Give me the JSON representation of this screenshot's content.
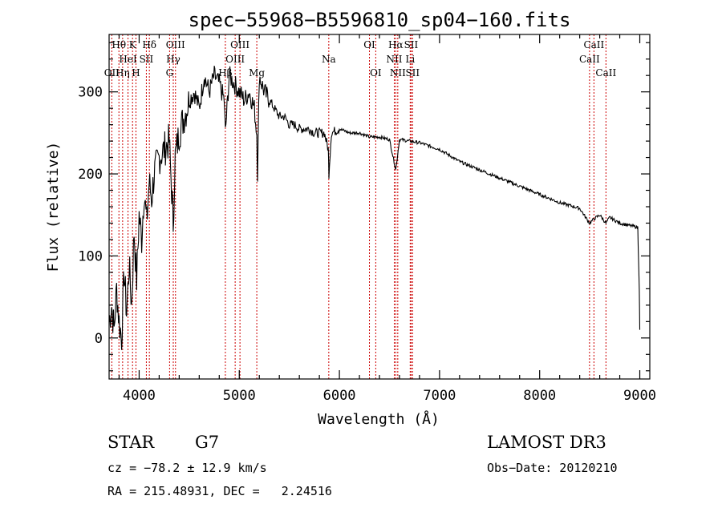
{
  "chart_data": {
    "type": "line",
    "title": "spec−55968−B5596810_sp04−160.fits",
    "xlabel": "Wavelength (Å)",
    "ylabel": "Flux (relative)",
    "xlim": [
      3700,
      9100
    ],
    "ylim": [
      -50,
      370
    ],
    "xticks": [
      4000,
      5000,
      6000,
      7000,
      8000,
      9000
    ],
    "xtick_labels": [
      "4000",
      "5000",
      "6000",
      "7000",
      "8000",
      "9000"
    ],
    "yticks": [
      0,
      100,
      200,
      300
    ],
    "ytick_labels": [
      "0",
      "100",
      "200",
      "300"
    ],
    "grid": false,
    "series": [
      {
        "name": "spectrum",
        "color": "#000000",
        "x": [
          3700,
          3725,
          3750,
          3775,
          3800,
          3825,
          3850,
          3875,
          3900,
          3925,
          3950,
          3975,
          4000,
          4025,
          4050,
          4075,
          4100,
          4125,
          4150,
          4175,
          4200,
          4250,
          4300,
          4325,
          4340,
          4360,
          4400,
          4450,
          4500,
          4550,
          4600,
          4650,
          4700,
          4750,
          4800,
          4850,
          4861,
          4900,
          4950,
          5000,
          5050,
          5100,
          5150,
          5175,
          5183,
          5200,
          5250,
          5300,
          5350,
          5400,
          5450,
          5500,
          5550,
          5600,
          5650,
          5700,
          5750,
          5800,
          5850,
          5889,
          5895,
          5920,
          6000,
          6100,
          6200,
          6300,
          6400,
          6500,
          6563,
          6600,
          6700,
          6800,
          7000,
          7200,
          7400,
          7600,
          7800,
          8000,
          8200,
          8400,
          8498,
          8542,
          8600,
          8662,
          8700,
          8800,
          8900,
          8980,
          8995,
          9000
        ],
        "values": [
          20,
          40,
          10,
          60,
          20,
          0,
          80,
          30,
          90,
          40,
          130,
          70,
          150,
          120,
          180,
          140,
          190,
          170,
          200,
          210,
          220,
          230,
          240,
          180,
          140,
          220,
          250,
          270,
          290,
          300,
          280,
          320,
          300,
          320,
          310,
          290,
          250,
          320,
          310,
          300,
          290,
          300,
          280,
          250,
          200,
          320,
          300,
          290,
          280,
          270,
          270,
          260,
          260,
          255,
          255,
          255,
          250,
          250,
          250,
          230,
          200,
          250,
          255,
          250,
          250,
          245,
          245,
          242,
          205,
          242,
          240,
          238,
          230,
          215,
          205,
          195,
          185,
          175,
          165,
          158,
          140,
          145,
          150,
          140,
          147,
          140,
          137,
          135,
          60,
          10
        ]
      }
    ],
    "spectral_lines": [
      {
        "wavelength": 3798,
        "label": "Hθ",
        "row": 0
      },
      {
        "wavelength": 3727,
        "label": "OII",
        "row": 2
      },
      {
        "wavelength": 3835,
        "label": "Hη",
        "row": 2
      },
      {
        "wavelength": 3889,
        "label": "HeI",
        "row": 1
      },
      {
        "wavelength": 3934,
        "label": "K",
        "row": 0
      },
      {
        "wavelength": 3968,
        "label": "H",
        "row": 2
      },
      {
        "wavelength": 4072,
        "label": "SII",
        "row": 1
      },
      {
        "wavelength": 4102,
        "label": "Hδ",
        "row": 0
      },
      {
        "wavelength": 4304,
        "label": "G",
        "row": 2
      },
      {
        "wavelength": 4341,
        "label": "Hγ",
        "row": 1
      },
      {
        "wavelength": 4363,
        "label": "OIII",
        "row": 0
      },
      {
        "wavelength": 4861,
        "label": "Hβ",
        "row": 2
      },
      {
        "wavelength": 4959,
        "label": "OIII",
        "row": 1
      },
      {
        "wavelength": 5007,
        "label": "OIII",
        "row": 0
      },
      {
        "wavelength": 5175,
        "label": "Mg",
        "row": 2
      },
      {
        "wavelength": 5894,
        "label": "Na",
        "row": 1
      },
      {
        "wavelength": 6300,
        "label": "OI",
        "row": 0
      },
      {
        "wavelength": 6363,
        "label": "OI",
        "row": 2
      },
      {
        "wavelength": 6548,
        "label": "NII",
        "row": 1
      },
      {
        "wavelength": 6563,
        "label": "Hα",
        "row": 0
      },
      {
        "wavelength": 6583,
        "label": "NII",
        "row": 2
      },
      {
        "wavelength": 6707,
        "label": "Li",
        "row": 1
      },
      {
        "wavelength": 6716,
        "label": "SII",
        "row": 0
      },
      {
        "wavelength": 6731,
        "label": "SII",
        "row": 2
      },
      {
        "wavelength": 8498,
        "label": "CaII",
        "row": 1
      },
      {
        "wavelength": 8542,
        "label": "CaII",
        "row": 0
      },
      {
        "wavelength": 8662,
        "label": "CaII",
        "row": 2
      }
    ],
    "line_color": "#cc0000"
  },
  "info": {
    "class_label": "STAR",
    "subclass": "G7",
    "survey": "LAMOST DR3",
    "cz": "cz = −78.2 ± 12.9 km/s",
    "obs_date": "Obs−Date: 20120210",
    "coords": "RA = 215.48931, DEC =   2.24516"
  }
}
